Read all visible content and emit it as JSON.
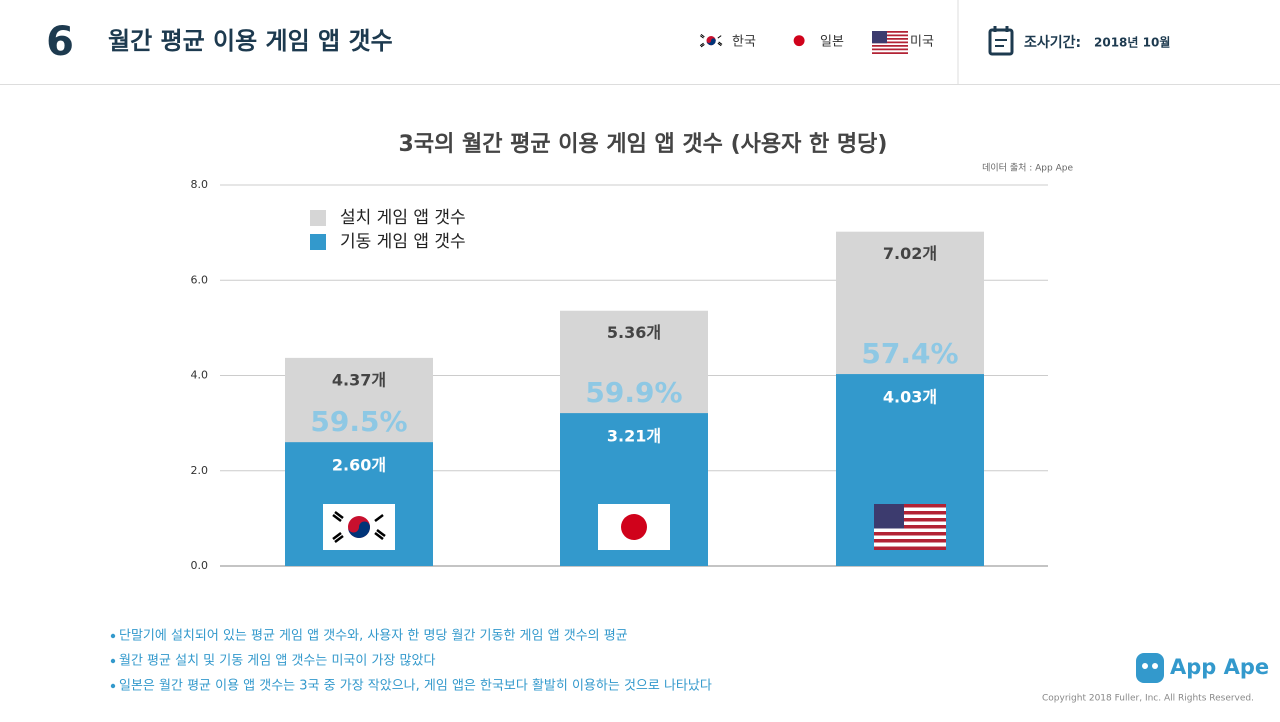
{
  "header": {
    "number": "6",
    "title": "월간 평균 이용 게임 앱 갯수",
    "countries": [
      "한국",
      "일본",
      "미국"
    ],
    "period_label": "조사기간:",
    "period": "2018년 10월"
  },
  "chart_data": {
    "type": "bar",
    "title": "3국의 월간 평균 이용 게임 앱 갯수 (사용자 한 명당)",
    "source": "데이터 출처 : App Ape",
    "categories": [
      null,
      null,
      null
    ],
    "series": [
      {
        "name": "설치 게임 앱 갯수",
        "color": "#d6d6d6",
        "values": [
          4.37,
          5.36,
          7.02
        ],
        "value_labels": [
          "4.37개",
          "5.36개",
          "7.02개"
        ]
      },
      {
        "name": "기동 게임 앱 갯수",
        "color": "#3399cc",
        "values": [
          2.6,
          3.21,
          4.03
        ],
        "value_labels": [
          "2.60개",
          "3.21개",
          "4.03개"
        ]
      }
    ],
    "annotations": [
      "59.5%",
      "59.9%",
      "57.4%"
    ],
    "ylim": [
      0,
      8
    ],
    "yticks": [
      {
        "value": 0,
        "label": "0.0"
      },
      {
        "value": 2,
        "label": "2.0"
      },
      {
        "value": 4,
        "label": "4.0"
      },
      {
        "value": 6,
        "label": "6.0"
      },
      {
        "value": 8,
        "label": "8.0"
      }
    ],
    "grid": true,
    "legend": "top-left"
  },
  "notes": [
    "단말기에 설치되어 있는 평균 게임 앱 갯수와, 사용자 한 명당 월간 기동한 게임 앱 갯수의 평균",
    "월간 평균 설치 및 기동 게임 앱 갯수는 미국이 가장 많았다",
    "일본은 월간 평균 이용 앱 갯수는 3국 중 가장 작았으나, 게임 앱은 한국보다 활발히 이용하는 것으로 나타났다"
  ],
  "footer": {
    "logo": "App Ape",
    "copyright": "Copyright 2018 Fuller, Inc. All Rights Reserved."
  }
}
